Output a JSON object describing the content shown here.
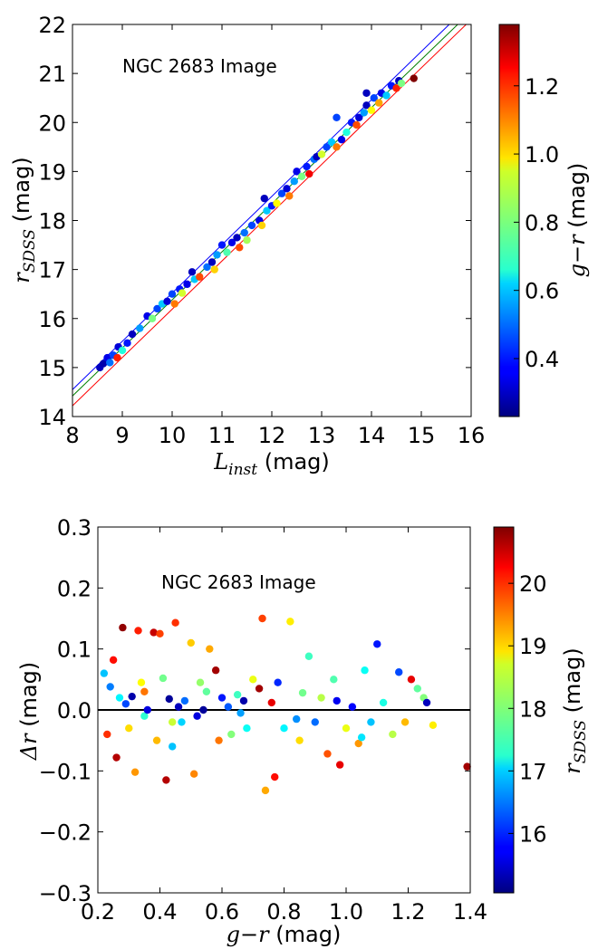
{
  "chart_data": [
    {
      "type": "scatter",
      "title": "",
      "annotation": "NGC 2683 Image",
      "xlabel_main": "L",
      "xlabel_sub": "inst",
      "xlabel_unit": " (mag)",
      "ylabel_main": "r",
      "ylabel_sub": "SDSS",
      "ylabel_unit": " (mag)",
      "xlim": [
        8,
        16
      ],
      "ylim": [
        14,
        22
      ],
      "xticks": [
        "8",
        "9",
        "10",
        "11",
        "12",
        "13",
        "14",
        "15",
        "16"
      ],
      "yticks": [
        "14",
        "15",
        "16",
        "17",
        "18",
        "19",
        "20",
        "21",
        "22"
      ],
      "grid": false,
      "colorbar": {
        "label_main": "g−r",
        "label_unit": " (mag)",
        "range": [
          0.23,
          1.38
        ],
        "ticks": [
          "0.4",
          "0.6",
          "0.8",
          "1.0",
          "1.2"
        ],
        "tick_values": [
          0.4,
          0.6,
          0.8,
          1.0,
          1.2
        ]
      },
      "fit_lines": [
        {
          "color": "#0000ff",
          "x": [
            8.0,
            15.56
          ],
          "y": [
            14.55,
            22.0
          ]
        },
        {
          "color": "#008000",
          "x": [
            8.0,
            15.73
          ],
          "y": [
            14.42,
            22.0
          ]
        },
        {
          "color": "#ff0000",
          "x": [
            8.0,
            15.9
          ],
          "y": [
            14.22,
            22.0
          ]
        }
      ],
      "points": [
        [
          8.55,
          15.0,
          0.3
        ],
        [
          8.62,
          15.08,
          0.28
        ],
        [
          8.7,
          15.2,
          0.35
        ],
        [
          8.75,
          15.1,
          0.5
        ],
        [
          8.82,
          15.25,
          0.45
        ],
        [
          8.9,
          15.2,
          1.2
        ],
        [
          8.92,
          15.42,
          0.33
        ],
        [
          9.0,
          15.35,
          0.7
        ],
        [
          9.1,
          15.5,
          0.4
        ],
        [
          9.2,
          15.68,
          0.3
        ],
        [
          9.35,
          15.8,
          0.55
        ],
        [
          9.5,
          16.05,
          0.35
        ],
        [
          9.6,
          16.0,
          0.8
        ],
        [
          9.7,
          16.2,
          0.45
        ],
        [
          9.8,
          16.3,
          0.6
        ],
        [
          9.9,
          16.35,
          0.33
        ],
        [
          10.0,
          16.5,
          0.45
        ],
        [
          10.05,
          16.3,
          1.1
        ],
        [
          10.15,
          16.6,
          0.4
        ],
        [
          10.2,
          16.52,
          0.9
        ],
        [
          10.3,
          16.7,
          0.35
        ],
        [
          10.4,
          16.95,
          0.3
        ],
        [
          10.45,
          16.8,
          0.6
        ],
        [
          10.55,
          16.85,
          1.15
        ],
        [
          10.7,
          17.05,
          0.5
        ],
        [
          10.8,
          17.15,
          0.3
        ],
        [
          10.85,
          17.0,
          1.0
        ],
        [
          10.9,
          17.3,
          0.55
        ],
        [
          11.0,
          17.5,
          0.4
        ],
        [
          11.1,
          17.35,
          0.75
        ],
        [
          11.2,
          17.55,
          0.35
        ],
        [
          11.3,
          17.65,
          0.3
        ],
        [
          11.35,
          17.45,
          1.15
        ],
        [
          11.45,
          17.75,
          0.5
        ],
        [
          11.5,
          17.6,
          0.85
        ],
        [
          11.6,
          17.9,
          0.45
        ],
        [
          11.75,
          18.0,
          0.35
        ],
        [
          11.8,
          17.9,
          1.0
        ],
        [
          11.85,
          18.45,
          0.3
        ],
        [
          11.9,
          18.2,
          0.6
        ],
        [
          12.0,
          18.3,
          0.4
        ],
        [
          12.1,
          18.35,
          0.95
        ],
        [
          12.2,
          18.55,
          0.45
        ],
        [
          12.3,
          18.65,
          0.33
        ],
        [
          12.35,
          18.5,
          1.1
        ],
        [
          12.45,
          18.8,
          0.55
        ],
        [
          12.5,
          19.0,
          0.35
        ],
        [
          12.6,
          18.9,
          0.8
        ],
        [
          12.7,
          19.1,
          0.4
        ],
        [
          12.75,
          18.95,
          1.25
        ],
        [
          12.85,
          19.25,
          0.5
        ],
        [
          12.9,
          19.3,
          0.3
        ],
        [
          13.0,
          19.35,
          0.9
        ],
        [
          13.1,
          19.5,
          0.45
        ],
        [
          13.2,
          19.6,
          0.6
        ],
        [
          13.3,
          19.5,
          1.1
        ],
        [
          13.4,
          19.65,
          0.35
        ],
        [
          13.5,
          19.8,
          0.7
        ],
        [
          13.6,
          20.0,
          0.4
        ],
        [
          13.7,
          19.95,
          1.15
        ],
        [
          13.75,
          20.1,
          0.33
        ],
        [
          13.85,
          20.2,
          0.55
        ],
        [
          13.9,
          20.35,
          0.3
        ],
        [
          14.0,
          20.25,
          0.95
        ],
        [
          14.05,
          20.5,
          0.45
        ],
        [
          14.15,
          20.4,
          1.05
        ],
        [
          14.2,
          20.6,
          0.35
        ],
        [
          14.3,
          20.55,
          0.6
        ],
        [
          14.4,
          20.75,
          0.4
        ],
        [
          14.5,
          20.7,
          1.2
        ],
        [
          14.55,
          20.85,
          0.3
        ],
        [
          14.6,
          20.8,
          0.8
        ],
        [
          14.85,
          20.9,
          1.38
        ],
        [
          13.3,
          20.1,
          0.45
        ],
        [
          13.9,
          20.6,
          0.3
        ]
      ]
    },
    {
      "type": "scatter",
      "title": "",
      "annotation": "NGC 2683 Image",
      "xlabel_main": "g−r",
      "xlabel_unit": " (mag)",
      "ylabel_main": "Δr",
      "ylabel_unit": " (mag)",
      "xlim": [
        0.2,
        1.4
      ],
      "ylim": [
        -0.3,
        0.3
      ],
      "xticks": [
        "0.2",
        "0.4",
        "0.6",
        "0.8",
        "1.0",
        "1.2",
        "1.4"
      ],
      "yticks": [
        "−0.3",
        "−0.2",
        "−0.1",
        "0.0",
        "0.1",
        "0.2",
        "0.3"
      ],
      "grid": false,
      "zero_line": 0.0,
      "colorbar": {
        "label_main": "r",
        "label_sub": "SDSS",
        "label_unit": " (mag)",
        "range": [
          15.05,
          20.9
        ],
        "ticks": [
          "16",
          "17",
          "18",
          "19",
          "20"
        ],
        "tick_values": [
          16,
          17,
          18,
          19,
          20
        ]
      },
      "points": [
        [
          0.22,
          0.06,
          16.9
        ],
        [
          0.24,
          0.038,
          16.5
        ],
        [
          0.25,
          0.082,
          20.1
        ],
        [
          0.23,
          -0.04,
          19.9
        ],
        [
          0.27,
          0.02,
          17.2
        ],
        [
          0.28,
          0.135,
          20.8
        ],
        [
          0.26,
          -0.078,
          20.6
        ],
        [
          0.29,
          0.01,
          16.2
        ],
        [
          0.3,
          -0.03,
          18.9
        ],
        [
          0.31,
          0.022,
          15.3
        ],
        [
          0.32,
          -0.102,
          19.3
        ],
        [
          0.33,
          0.13,
          20.0
        ],
        [
          0.34,
          0.045,
          18.7
        ],
        [
          0.35,
          -0.01,
          17.5
        ],
        [
          0.36,
          0.0,
          15.6
        ],
        [
          0.38,
          0.127,
          20.5
        ],
        [
          0.39,
          -0.05,
          19.1
        ],
        [
          0.4,
          0.125,
          19.8
        ],
        [
          0.41,
          0.052,
          17.9
        ],
        [
          0.42,
          -0.115,
          20.6
        ],
        [
          0.43,
          0.018,
          15.2
        ],
        [
          0.44,
          -0.06,
          16.9
        ],
        [
          0.45,
          0.143,
          19.9
        ],
        [
          0.46,
          0.005,
          15.4
        ],
        [
          0.47,
          -0.02,
          17.0
        ],
        [
          0.48,
          0.015,
          16.4
        ],
        [
          0.5,
          0.11,
          19.0
        ],
        [
          0.51,
          -0.105,
          19.4
        ],
        [
          0.52,
          -0.01,
          15.6
        ],
        [
          0.53,
          0.045,
          18.1
        ],
        [
          0.55,
          0.03,
          17.8
        ],
        [
          0.56,
          0.1,
          19.2
        ],
        [
          0.58,
          0.065,
          20.7
        ],
        [
          0.59,
          -0.05,
          19.5
        ],
        [
          0.6,
          0.02,
          15.9
        ],
        [
          0.62,
          0.005,
          16.3
        ],
        [
          0.63,
          -0.04,
          18.0
        ],
        [
          0.65,
          0.025,
          17.6
        ],
        [
          0.67,
          0.015,
          15.3
        ],
        [
          0.68,
          -0.03,
          17.3
        ],
        [
          0.7,
          0.05,
          18.6
        ],
        [
          0.72,
          0.035,
          20.7
        ],
        [
          0.73,
          0.15,
          19.8
        ],
        [
          0.74,
          -0.132,
          19.2
        ],
        [
          0.76,
          0.012,
          20.3
        ],
        [
          0.77,
          -0.11,
          20.1
        ],
        [
          0.78,
          0.045,
          16.0
        ],
        [
          0.8,
          -0.03,
          17.2
        ],
        [
          0.82,
          0.145,
          18.8
        ],
        [
          0.84,
          -0.015,
          16.6
        ],
        [
          0.86,
          0.028,
          17.9
        ],
        [
          0.88,
          0.088,
          17.6
        ],
        [
          0.9,
          -0.02,
          16.4
        ],
        [
          0.92,
          0.02,
          18.3
        ],
        [
          0.94,
          -0.072,
          19.7
        ],
        [
          0.96,
          0.05,
          17.7
        ],
        [
          0.98,
          -0.09,
          20.3
        ],
        [
          1.0,
          -0.03,
          18.6
        ],
        [
          1.02,
          0.005,
          15.8
        ],
        [
          1.04,
          -0.055,
          19.3
        ],
        [
          1.06,
          0.065,
          17.3
        ],
        [
          1.08,
          -0.02,
          16.9
        ],
        [
          1.1,
          0.108,
          15.9
        ],
        [
          1.12,
          0.012,
          17.4
        ],
        [
          1.15,
          -0.04,
          18.3
        ],
        [
          1.17,
          0.062,
          16.2
        ],
        [
          1.19,
          -0.02,
          19.1
        ],
        [
          1.21,
          0.05,
          20.3
        ],
        [
          1.23,
          0.035,
          17.8
        ],
        [
          1.25,
          0.02,
          18.0
        ],
        [
          1.26,
          0.012,
          15.4
        ],
        [
          1.28,
          -0.025,
          18.8
        ],
        [
          1.39,
          -0.093,
          20.7
        ],
        [
          0.54,
          0.0,
          15.2
        ],
        [
          0.66,
          -0.005,
          16.7
        ],
        [
          0.85,
          -0.05,
          18.9
        ],
        [
          0.97,
          0.015,
          15.7
        ],
        [
          1.05,
          -0.045,
          17.1
        ],
        [
          0.44,
          -0.02,
          18.4
        ],
        [
          0.35,
          0.03,
          19.5
        ]
      ]
    }
  ]
}
